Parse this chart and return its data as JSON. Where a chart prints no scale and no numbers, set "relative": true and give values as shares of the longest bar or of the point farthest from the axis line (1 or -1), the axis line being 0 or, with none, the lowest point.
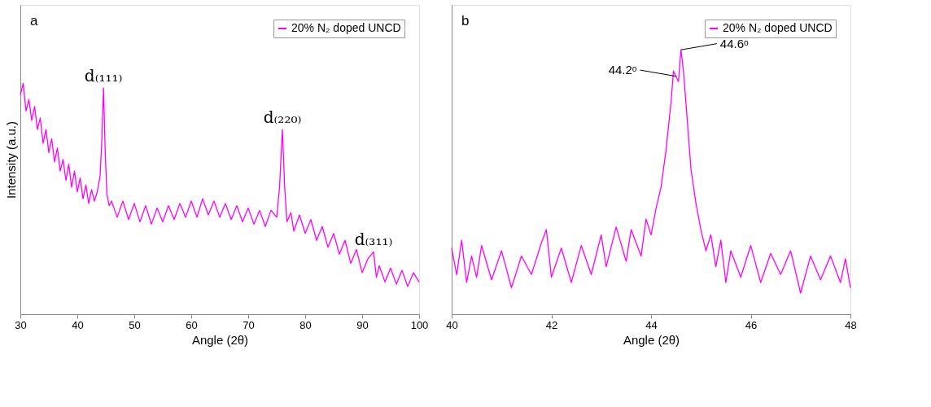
{
  "chart_data": [
    {
      "type": "line",
      "xlabel": "Angle (2θ)",
      "ylabel": "Intensity (a.u.)",
      "relative": true,
      "xlim": [
        30,
        100
      ],
      "xticks": [
        30,
        40,
        50,
        60,
        70,
        80,
        90,
        100
      ],
      "tick_labels": "x",
      "legend": "top right",
      "grid": false,
      "annotations": [
        "a",
        {
          "text": "d₍₁₁₁₎",
          "x": 44.6,
          "y": 0.98
        },
        {
          "text": "d₍₂₂₀₎",
          "x": 76,
          "y": 0.8
        },
        {
          "text": "d₍₃₁₁₎",
          "x": 92,
          "y": 0.27
        }
      ],
      "series": [
        {
          "name": "20% N₂ doped UNCD",
          "color": "#ff00ff",
          "x": [
            30,
            30.5,
            31,
            31.5,
            32,
            32.5,
            33,
            33.5,
            34,
            34.5,
            35,
            35.5,
            36,
            36.5,
            37,
            37.5,
            38,
            38.5,
            39,
            39.5,
            40,
            40.5,
            41,
            41.5,
            42,
            42.5,
            43,
            43.5,
            44,
            44.3,
            44.6,
            44.9,
            45.2,
            45.6,
            46,
            47,
            48,
            49,
            50,
            51,
            52,
            53,
            54,
            55,
            56,
            57,
            58,
            59,
            60,
            61,
            62,
            63,
            64,
            65,
            66,
            67,
            68,
            69,
            70,
            71,
            72,
            73,
            74,
            75,
            75.5,
            76,
            76.4,
            76.8,
            77.5,
            78,
            79,
            80,
            81,
            82,
            83,
            84,
            85,
            86,
            87,
            88,
            89,
            90,
            91,
            92,
            92.5,
            93,
            94,
            95,
            96,
            97,
            98,
            99,
            100
          ],
          "values": [
            0.95,
            1.0,
            0.88,
            0.93,
            0.84,
            0.9,
            0.8,
            0.85,
            0.74,
            0.8,
            0.7,
            0.76,
            0.66,
            0.72,
            0.62,
            0.67,
            0.58,
            0.65,
            0.55,
            0.62,
            0.53,
            0.59,
            0.5,
            0.56,
            0.48,
            0.54,
            0.49,
            0.53,
            0.6,
            0.75,
            0.98,
            0.7,
            0.52,
            0.47,
            0.49,
            0.42,
            0.49,
            0.41,
            0.48,
            0.4,
            0.47,
            0.39,
            0.46,
            0.4,
            0.47,
            0.41,
            0.48,
            0.42,
            0.49,
            0.42,
            0.5,
            0.43,
            0.49,
            0.42,
            0.48,
            0.41,
            0.47,
            0.4,
            0.46,
            0.39,
            0.45,
            0.38,
            0.45,
            0.42,
            0.55,
            0.8,
            0.55,
            0.4,
            0.44,
            0.36,
            0.43,
            0.35,
            0.41,
            0.32,
            0.38,
            0.29,
            0.35,
            0.26,
            0.32,
            0.22,
            0.28,
            0.18,
            0.24,
            0.27,
            0.16,
            0.21,
            0.14,
            0.2,
            0.13,
            0.19,
            0.12,
            0.18,
            0.14
          ]
        }
      ]
    },
    {
      "type": "line",
      "xlabel": "Angle (2θ)",
      "relative": true,
      "xlim": [
        40,
        48
      ],
      "xticks": [
        40,
        42,
        44,
        46,
        48
      ],
      "tick_labels": "x",
      "legend": "top right",
      "grid": false,
      "annotations": [
        "b",
        {
          "text": "44.2ᵒ",
          "x": 44.5,
          "y": 0.9
        },
        {
          "text": "44.6ᵒ",
          "x": 44.6,
          "y": 1.0
        }
      ],
      "series": [
        {
          "name": "20% N₂ doped UNCD",
          "color": "#ff00ff",
          "x": [
            40,
            40.1,
            40.2,
            40.3,
            40.4,
            40.5,
            40.6,
            40.8,
            41,
            41.2,
            41.4,
            41.6,
            41.8,
            41.9,
            42,
            42.2,
            42.4,
            42.6,
            42.8,
            43,
            43.1,
            43.3,
            43.5,
            43.6,
            43.8,
            43.9,
            44,
            44.1,
            44.2,
            44.3,
            44.4,
            44.45,
            44.5,
            44.55,
            44.6,
            44.65,
            44.7,
            44.8,
            44.9,
            45,
            45.1,
            45.2,
            45.3,
            45.4,
            45.5,
            45.6,
            45.8,
            46,
            46.2,
            46.4,
            46.6,
            46.8,
            47,
            47.2,
            47.4,
            47.6,
            47.8,
            47.9,
            48
          ],
          "values": [
            0.25,
            0.15,
            0.28,
            0.12,
            0.22,
            0.14,
            0.26,
            0.13,
            0.24,
            0.1,
            0.22,
            0.15,
            0.27,
            0.32,
            0.14,
            0.25,
            0.12,
            0.26,
            0.15,
            0.3,
            0.18,
            0.33,
            0.2,
            0.32,
            0.22,
            0.36,
            0.3,
            0.4,
            0.48,
            0.62,
            0.8,
            0.92,
            0.9,
            0.88,
            1.0,
            0.92,
            0.8,
            0.55,
            0.42,
            0.32,
            0.24,
            0.3,
            0.18,
            0.28,
            0.12,
            0.24,
            0.14,
            0.26,
            0.12,
            0.23,
            0.15,
            0.24,
            0.08,
            0.22,
            0.13,
            0.22,
            0.12,
            0.21,
            0.1
          ]
        }
      ]
    }
  ]
}
